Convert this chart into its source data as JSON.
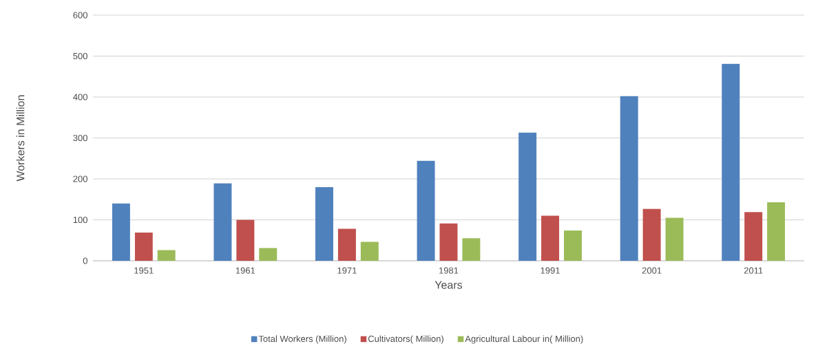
{
  "chart_data": {
    "type": "bar",
    "xlabel": "Years",
    "ylabel": "Workers in Million",
    "categories": [
      "1951",
      "1961",
      "1971",
      "1981",
      "1991",
      "2001",
      "2011"
    ],
    "series": [
      {
        "name": "Total Workers (Million)",
        "color": "#4f81bd",
        "values": [
          140,
          189,
          180,
          244,
          313,
          402,
          481
        ]
      },
      {
        "name": "Cultivators( Million)",
        "color": "#c0504d",
        "values": [
          69,
          100,
          78,
          91,
          110,
          127,
          119
        ]
      },
      {
        "name": "Agricultural Labour in( Million)",
        "color": "#9bbb59",
        "values": [
          26,
          31,
          46,
          55,
          74,
          105,
          143
        ]
      }
    ],
    "ylim": [
      0,
      600
    ],
    "yticks": [
      0,
      100,
      200,
      300,
      400,
      500,
      600
    ],
    "grid": "y",
    "legend": "bottom"
  }
}
